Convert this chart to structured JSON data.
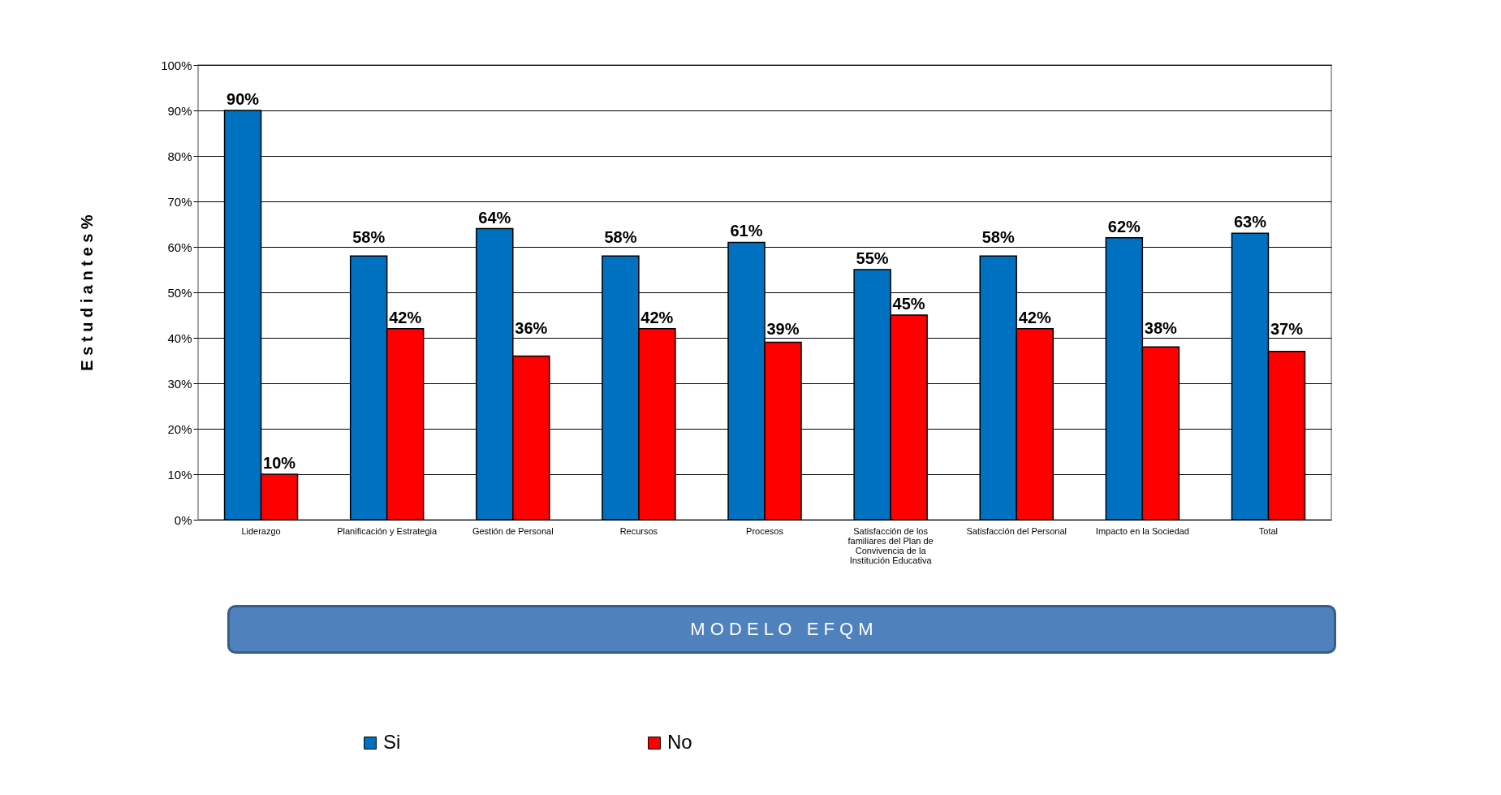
{
  "chart_data": {
    "type": "bar",
    "xlabel": "M O D E L O   E F Q M",
    "ylabel": "E s t u d i a n t e s   %",
    "categories": [
      "Liderazgo",
      "Planificación y Estrategia",
      "Gestión de Personal",
      "Recursos",
      "Procesos",
      "Satisfacción de los familiares del Plan de Convivencia de la Institución Educativa",
      "Satisfacción del Personal",
      "Impacto en la Sociedad",
      "Total"
    ],
    "series": [
      {
        "name": "Si",
        "color": "#0070c0",
        "values": [
          90,
          58,
          64,
          58,
          61,
          55,
          58,
          62,
          63
        ],
        "value_labels": [
          "90%",
          "58%",
          "64%",
          "58%",
          "61%",
          "55%",
          "58%",
          "62%",
          "63%"
        ]
      },
      {
        "name": "No",
        "color": "#ff0000",
        "values": [
          10,
          42,
          36,
          42,
          39,
          45,
          42,
          38,
          37
        ],
        "value_labels": [
          "10%",
          "42%",
          "36%",
          "42%",
          "39%",
          "45%",
          "42%",
          "38%",
          "37%"
        ]
      }
    ],
    "ylim": [
      0,
      100
    ],
    "yticks": [
      {
        "value": 0,
        "label": "0%"
      },
      {
        "value": 10,
        "label": "10%"
      },
      {
        "value": 20,
        "label": "20%"
      },
      {
        "value": 30,
        "label": "30%"
      },
      {
        "value": 40,
        "label": "40%"
      },
      {
        "value": 50,
        "label": "50%"
      },
      {
        "value": 60,
        "label": "60%"
      },
      {
        "value": 70,
        "label": "70%"
      },
      {
        "value": 80,
        "label": "80%"
      },
      {
        "value": 90,
        "label": "90%"
      },
      {
        "value": 100,
        "label": "100%"
      }
    ],
    "grid": "y",
    "legend": "bottom"
  }
}
